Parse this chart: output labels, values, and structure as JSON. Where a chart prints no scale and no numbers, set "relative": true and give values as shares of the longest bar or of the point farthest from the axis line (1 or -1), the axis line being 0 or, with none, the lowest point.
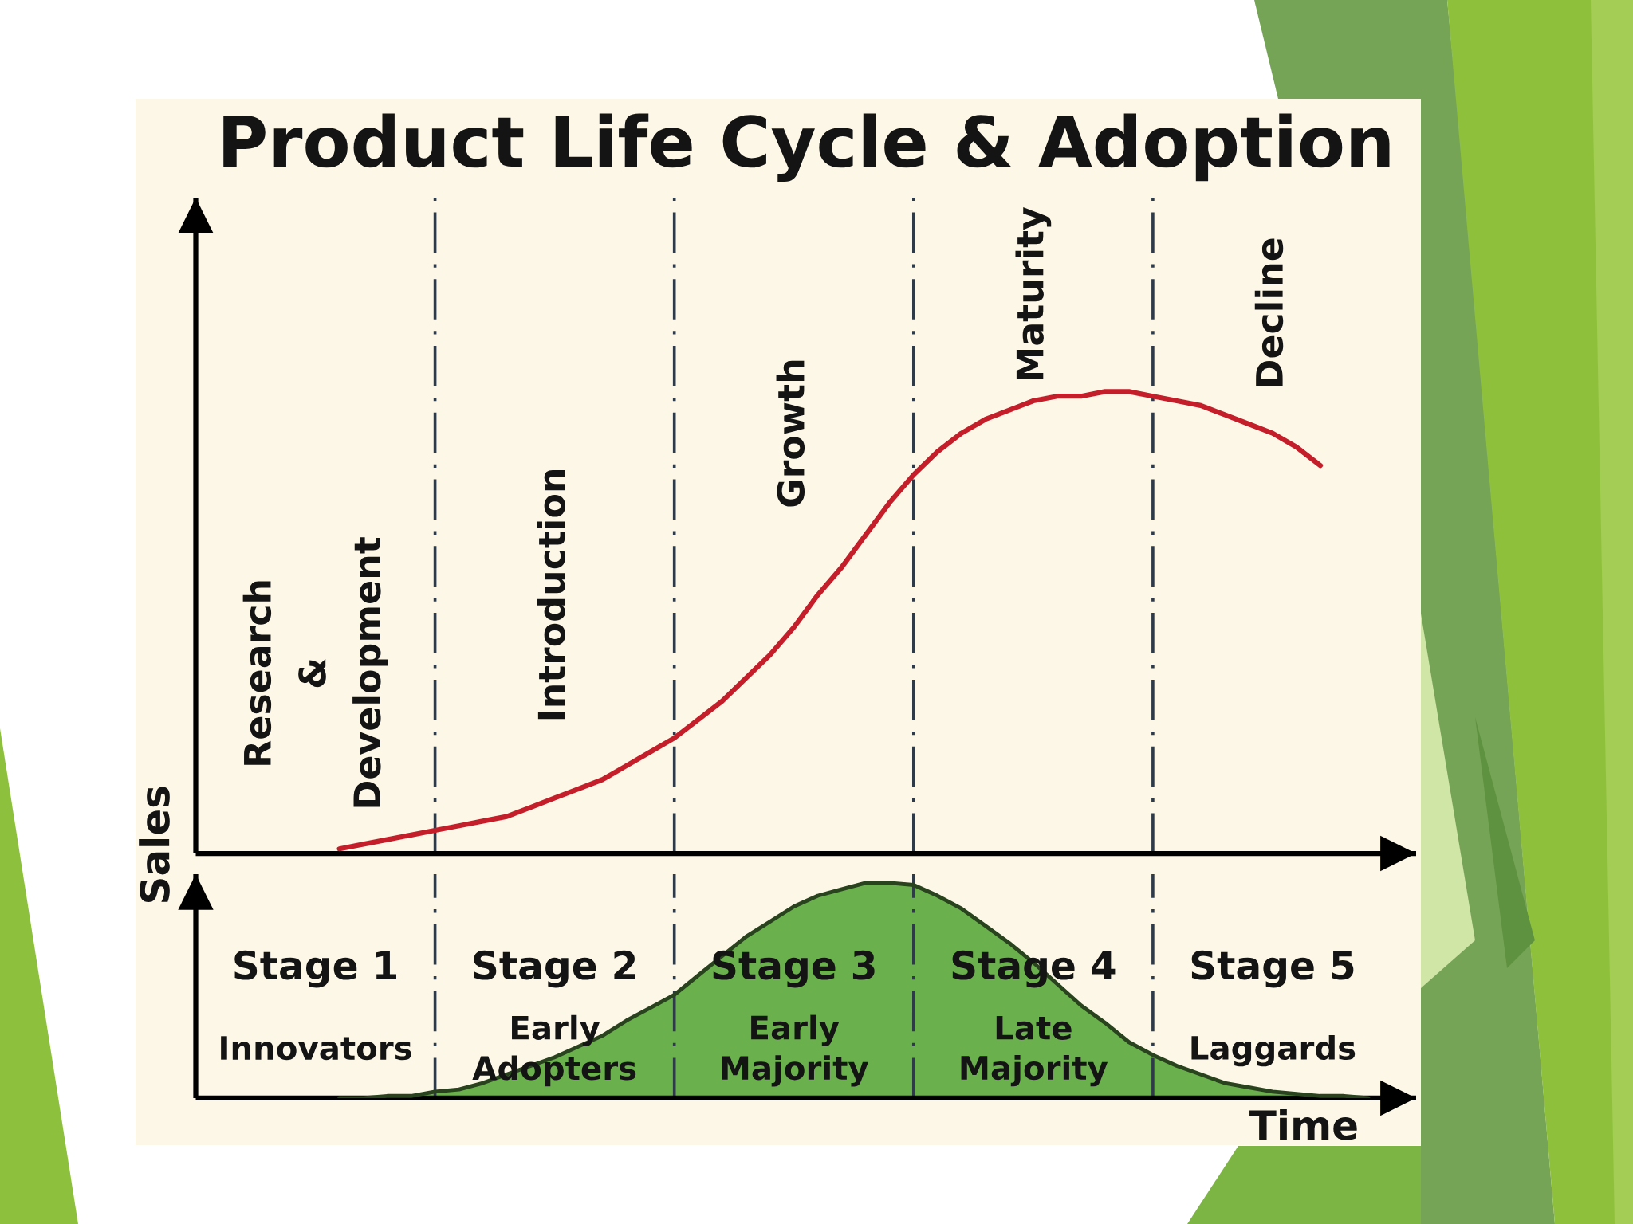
{
  "chart_data": [
    {
      "type": "line",
      "title": "Product Life Cycle & Adoption",
      "ylabel": "Sales",
      "relative": true,
      "grid": "x",
      "categories": [
        null,
        null,
        null,
        null,
        null,
        null,
        null,
        null,
        null,
        null,
        null,
        null,
        null,
        null,
        null,
        null,
        null,
        null,
        null,
        null,
        null,
        null,
        null,
        null,
        null,
        null,
        null,
        null,
        null,
        null,
        null,
        null,
        null,
        null,
        null,
        null,
        null,
        null,
        null,
        null,
        null,
        null,
        null,
        null,
        null,
        null,
        null,
        null,
        null,
        null,
        null,
        null
      ],
      "series": [
        {
          "color": "#c41e2a",
          "values": [
            null,
            null,
            null,
            null,
            null,
            null,
            0.01,
            0.02,
            0.03,
            0.04,
            0.05,
            0.06,
            0.07,
            0.08,
            0.1,
            0.12,
            0.14,
            0.16,
            0.19,
            0.22,
            0.25,
            0.29,
            0.33,
            0.38,
            0.43,
            0.49,
            0.56,
            0.62,
            0.69,
            0.76,
            0.82,
            0.87,
            0.91,
            0.94,
            0.96,
            0.98,
            0.99,
            0.99,
            1.0,
            1.0,
            0.99,
            0.98,
            0.97,
            0.95,
            0.93,
            0.91,
            0.88,
            0.84,
            null,
            null,
            null,
            null
          ]
        }
      ],
      "annotations": [
        "Research & Development",
        "Introduction",
        "Growth",
        "Maturity",
        "Decline"
      ]
    },
    {
      "type": "area",
      "xlabel": "Time",
      "relative": true,
      "grid": "x",
      "categories": [
        null,
        null,
        null,
        null,
        null,
        null,
        null,
        null,
        null,
        null,
        null,
        null,
        null,
        null,
        null,
        null,
        null,
        null,
        null,
        null,
        null,
        null,
        null,
        null,
        null,
        null,
        null,
        null,
        null,
        null,
        null,
        null,
        null,
        null,
        null,
        null,
        null,
        null,
        null,
        null,
        null,
        null,
        null,
        null,
        null,
        null,
        null,
        null,
        null,
        null,
        null,
        null
      ],
      "series": [
        {
          "color": "#6ab04c",
          "values": [
            null,
            null,
            null,
            null,
            null,
            null,
            0.0,
            0.0,
            0.01,
            0.01,
            0.03,
            0.04,
            0.07,
            0.11,
            0.15,
            0.19,
            0.24,
            0.29,
            0.36,
            0.42,
            0.48,
            0.57,
            0.66,
            0.75,
            0.82,
            0.89,
            0.94,
            0.97,
            1.0,
            1.0,
            0.99,
            0.94,
            0.88,
            0.8,
            0.72,
            0.63,
            0.53,
            0.43,
            0.35,
            0.26,
            0.2,
            0.15,
            0.11,
            0.07,
            0.05,
            0.03,
            0.02,
            0.01,
            0.01,
            0.0,
            null,
            null
          ]
        }
      ],
      "annotations": [
        "Stage 1",
        "Innovators",
        "Stage 2",
        "Early Adopters",
        "Stage 3",
        "Early Majority",
        "Stage 4",
        "Late Majority",
        "Stage 5",
        "Laggards"
      ]
    }
  ]
}
